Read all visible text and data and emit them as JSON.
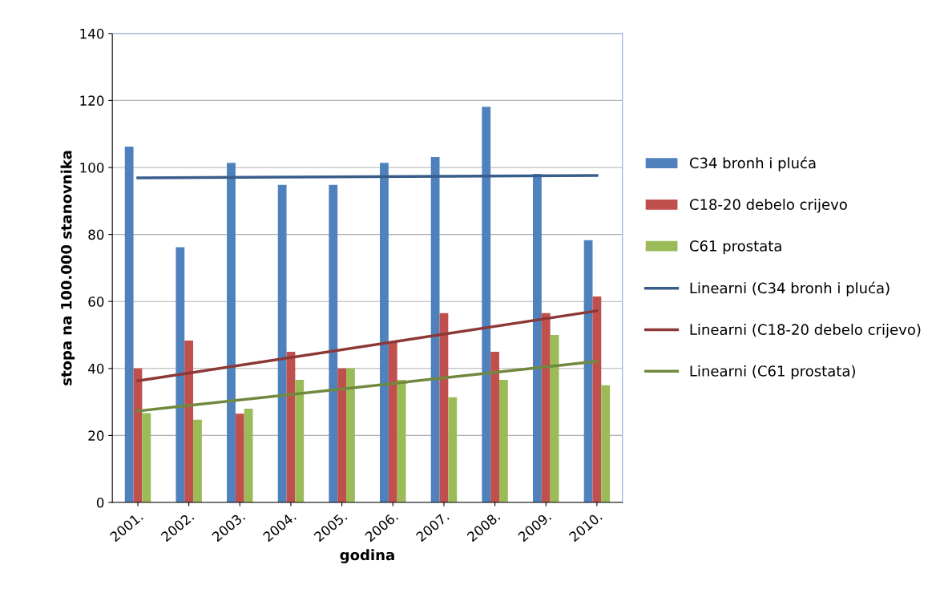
{
  "chart_data": {
    "type": "bar",
    "xlabel": "godina",
    "ylabel": "stopa na 100.000 stanovnika",
    "categories": [
      "2001.",
      "2002.",
      "2003.",
      "2004.",
      "2005.",
      "2006.",
      "2007.",
      "2008.",
      "2009.",
      "2010."
    ],
    "series": [
      {
        "name": "C34 bronh i pluća",
        "color": "#4f81bd",
        "values": [
          106.2,
          76.2,
          101.4,
          94.8,
          94.8,
          101.4,
          103.1,
          118.1,
          98.1,
          78.3
        ]
      },
      {
        "name": "C18-20 debelo crijevo",
        "color": "#c0504d",
        "values": [
          40,
          48.3,
          26.5,
          45,
          40,
          48,
          56.5,
          45,
          56.5,
          61.5
        ]
      },
      {
        "name": "C61 prostata",
        "color": "#9bbb59",
        "values": [
          26.7,
          24.7,
          28,
          36.6,
          40,
          36.6,
          31.4,
          36.6,
          50,
          35
        ]
      },
      {
        "name": "Linearni (C34 bronh i pluća)",
        "type": "line",
        "color": "#385d8a",
        "x": [
          "2001.",
          "2010."
        ],
        "values": [
          96.9,
          97.6
        ]
      },
      {
        "name": "Linearni (C18-20 debelo crijevo)",
        "type": "line",
        "color": "#8c3836",
        "x": [
          "2001.",
          "2010."
        ],
        "values": [
          36.3,
          57.2
        ]
      },
      {
        "name": "Linearni (C61 prostata)",
        "type": "line",
        "color": "#71893f",
        "x": [
          "2001.",
          "2010."
        ],
        "values": [
          27.3,
          42.1
        ]
      }
    ],
    "ylim": [
      0,
      140
    ],
    "yticks": [
      0,
      20,
      40,
      60,
      80,
      100,
      120,
      140
    ],
    "grid": "y",
    "legend": "right"
  }
}
